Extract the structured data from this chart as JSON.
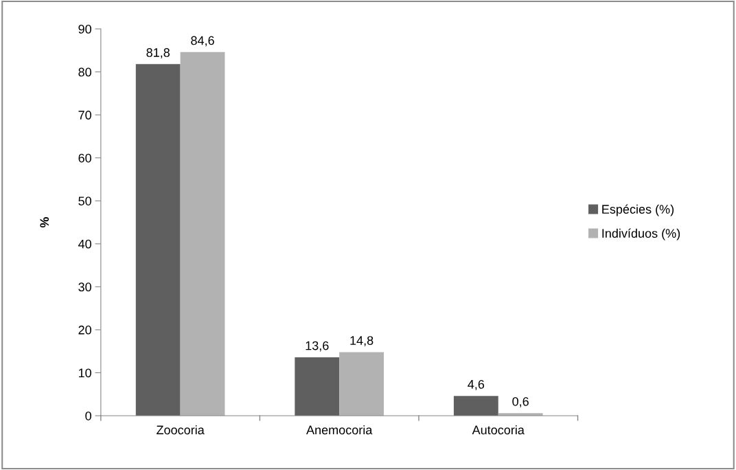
{
  "chart_data": {
    "type": "bar",
    "ylabel": "%",
    "categories": [
      "Zoocoria",
      "Anemocoria",
      "Autocoria"
    ],
    "series": [
      {
        "name": "Espécies (%)",
        "color": "#5f5f5f",
        "values": [
          81.8,
          13.6,
          4.6
        ],
        "value_labels": [
          "81,8",
          "13,6",
          "4,6"
        ]
      },
      {
        "name": "Indivíduos (%)",
        "color": "#b2b2b2",
        "values": [
          84.6,
          14.8,
          0.6
        ],
        "value_labels": [
          "84,6",
          "14,8",
          "0,6"
        ]
      }
    ],
    "ylim": [
      0,
      90
    ],
    "yticks": [
      0,
      10,
      20,
      30,
      40,
      50,
      60,
      70,
      80,
      90
    ],
    "grid": false,
    "legend": "right"
  }
}
